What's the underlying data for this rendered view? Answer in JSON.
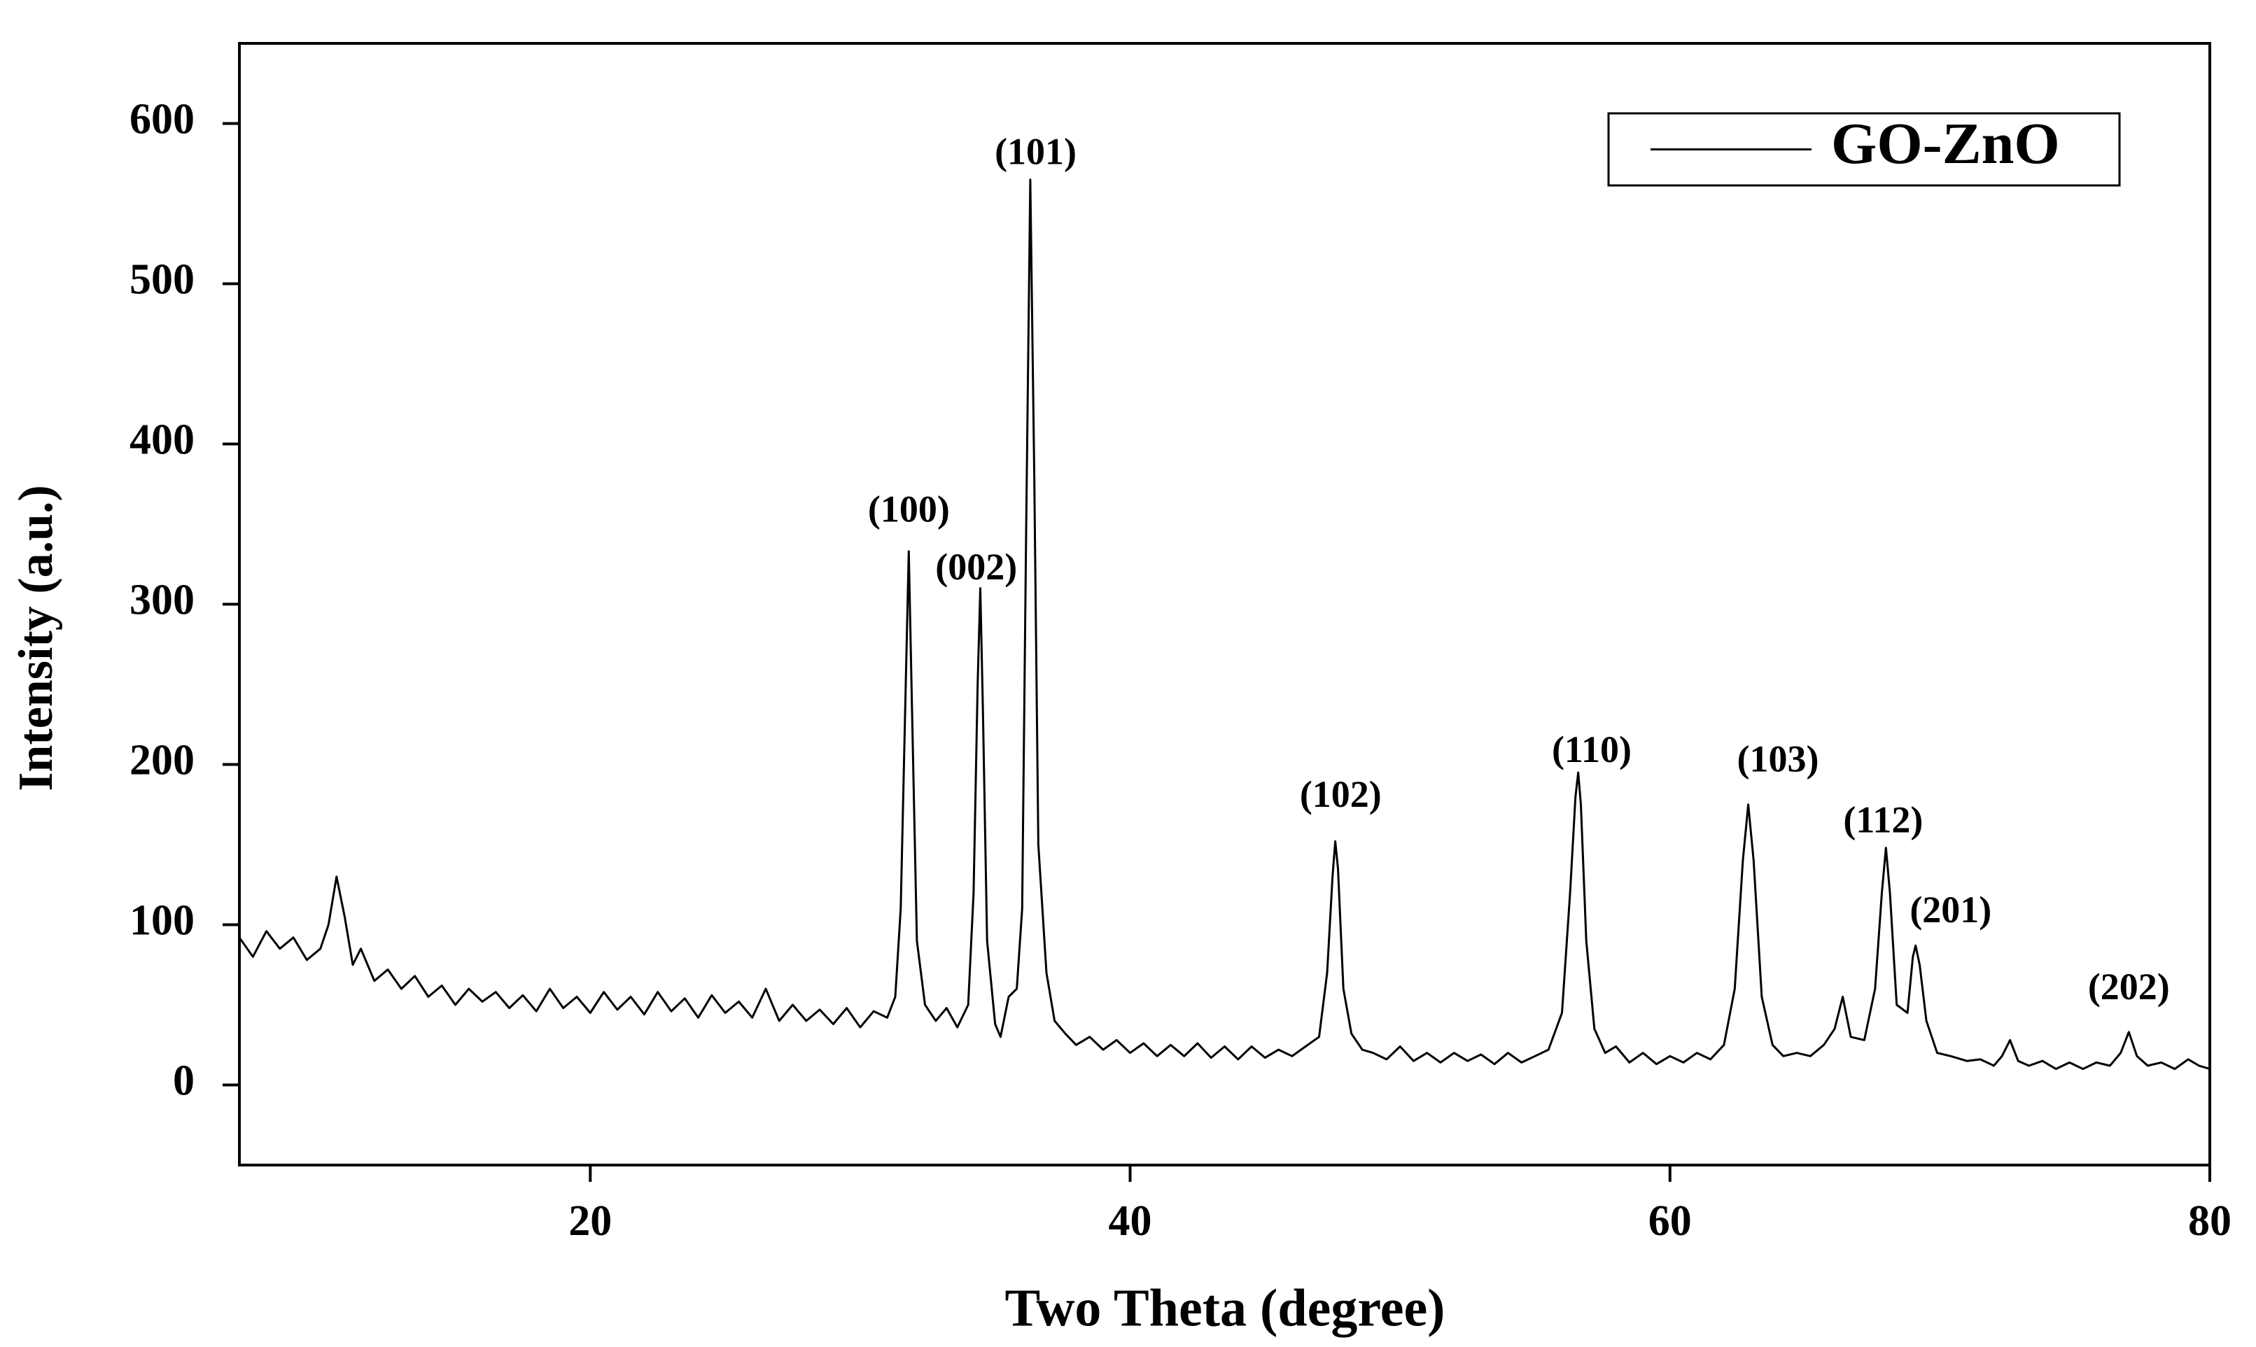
{
  "chart_data": {
    "type": "line",
    "x_label": "Two Theta (degree)",
    "y_label": "Intensity (a.u.)",
    "xlim": [
      7,
      80
    ],
    "ylim": [
      -50,
      650
    ],
    "xticks": [
      20,
      40,
      60,
      80
    ],
    "yticks": [
      0,
      100,
      200,
      300,
      400,
      500,
      600
    ],
    "legend": "upper right",
    "series": [
      {
        "name": "GO-ZnO",
        "color": "#000000",
        "x": [
          7,
          7.5,
          8,
          8.5,
          9,
          9.5,
          10,
          10.3,
          10.6,
          10.9,
          11.2,
          11.5,
          12,
          12.5,
          13,
          13.5,
          14,
          14.5,
          15,
          15.5,
          16,
          16.5,
          17,
          17.5,
          18,
          18.5,
          19,
          19.5,
          20,
          20.5,
          21,
          21.5,
          22,
          22.5,
          23,
          23.5,
          24,
          24.5,
          25,
          25.5,
          26,
          26.5,
          27,
          27.5,
          28,
          28.5,
          29,
          29.5,
          30,
          30.5,
          31,
          31.3,
          31.5,
          31.7,
          31.8,
          31.9,
          32.1,
          32.4,
          32.8,
          33.2,
          33.6,
          34,
          34.2,
          34.35,
          34.45,
          34.55,
          34.7,
          35,
          35.2,
          35.5,
          35.8,
          36,
          36.15,
          36.3,
          36.45,
          36.6,
          36.9,
          37.2,
          37.6,
          38,
          38.5,
          39,
          39.5,
          40,
          40.5,
          41,
          41.5,
          42,
          42.5,
          43,
          43.5,
          44,
          44.5,
          45,
          45.5,
          46,
          46.5,
          47,
          47.3,
          47.5,
          47.6,
          47.7,
          47.9,
          48.2,
          48.6,
          49,
          49.5,
          50,
          50.5,
          51,
          51.5,
          52,
          52.5,
          53,
          53.5,
          54,
          54.5,
          55,
          55.5,
          56,
          56.3,
          56.5,
          56.6,
          56.7,
          56.9,
          57.2,
          57.6,
          58,
          58.5,
          59,
          59.5,
          60,
          60.5,
          61,
          61.5,
          62,
          62.4,
          62.7,
          62.9,
          63.1,
          63.4,
          63.8,
          64.2,
          64.7,
          65.2,
          65.7,
          66.1,
          66.4,
          66.7,
          67.2,
          67.6,
          67.85,
          68,
          68.15,
          68.4,
          68.8,
          69,
          69.1,
          69.25,
          69.5,
          69.9,
          70.4,
          71,
          71.5,
          72,
          72.3,
          72.6,
          72.9,
          73.3,
          73.8,
          74.3,
          74.8,
          75.3,
          75.8,
          76.3,
          76.7,
          77,
          77.3,
          77.7,
          78.2,
          78.7,
          79.2,
          79.6,
          80
        ],
        "values": [
          92,
          80,
          96,
          85,
          92,
          78,
          85,
          100,
          130,
          105,
          75,
          85,
          65,
          72,
          60,
          68,
          55,
          62,
          50,
          60,
          52,
          58,
          48,
          56,
          46,
          60,
          48,
          55,
          45,
          58,
          47,
          55,
          44,
          58,
          46,
          54,
          42,
          56,
          45,
          52,
          42,
          60,
          40,
          50,
          40,
          47,
          38,
          48,
          36,
          46,
          42,
          55,
          110,
          260,
          333,
          250,
          90,
          50,
          40,
          48,
          36,
          50,
          120,
          250,
          310,
          230,
          90,
          38,
          30,
          55,
          60,
          110,
          350,
          565,
          380,
          150,
          70,
          40,
          32,
          25,
          30,
          22,
          28,
          20,
          26,
          18,
          25,
          18,
          26,
          17,
          24,
          16,
          24,
          17,
          22,
          18,
          24,
          30,
          70,
          130,
          152,
          135,
          60,
          32,
          22,
          20,
          16,
          24,
          15,
          20,
          14,
          20,
          15,
          19,
          13,
          20,
          14,
          18,
          22,
          45,
          120,
          180,
          195,
          175,
          90,
          35,
          20,
          24,
          14,
          20,
          13,
          18,
          14,
          20,
          16,
          25,
          60,
          140,
          175,
          140,
          55,
          25,
          18,
          20,
          18,
          25,
          35,
          55,
          30,
          28,
          60,
          120,
          148,
          120,
          50,
          45,
          80,
          87,
          75,
          40,
          20,
          18,
          15,
          16,
          12,
          18,
          28,
          15,
          12,
          15,
          10,
          14,
          10,
          14,
          12,
          20,
          33,
          18,
          12,
          14,
          10,
          16,
          12,
          10
        ]
      }
    ],
    "annotations": [
      {
        "text": "(100)",
        "x": 31.8,
        "y": 357
      },
      {
        "text": "(002)",
        "x": 34.3,
        "y": 321
      },
      {
        "text": "(101)",
        "x": 36.5,
        "y": 580
      },
      {
        "text": "(102)",
        "x": 47.8,
        "y": 179
      },
      {
        "text": "(110)",
        "x": 57.1,
        "y": 207
      },
      {
        "text": "(103)",
        "x": 64.0,
        "y": 201
      },
      {
        "text": "(112)",
        "x": 67.9,
        "y": 163
      },
      {
        "text": "(201)",
        "x": 70.4,
        "y": 107
      },
      {
        "text": "(202)",
        "x": 77.0,
        "y": 59
      }
    ]
  }
}
